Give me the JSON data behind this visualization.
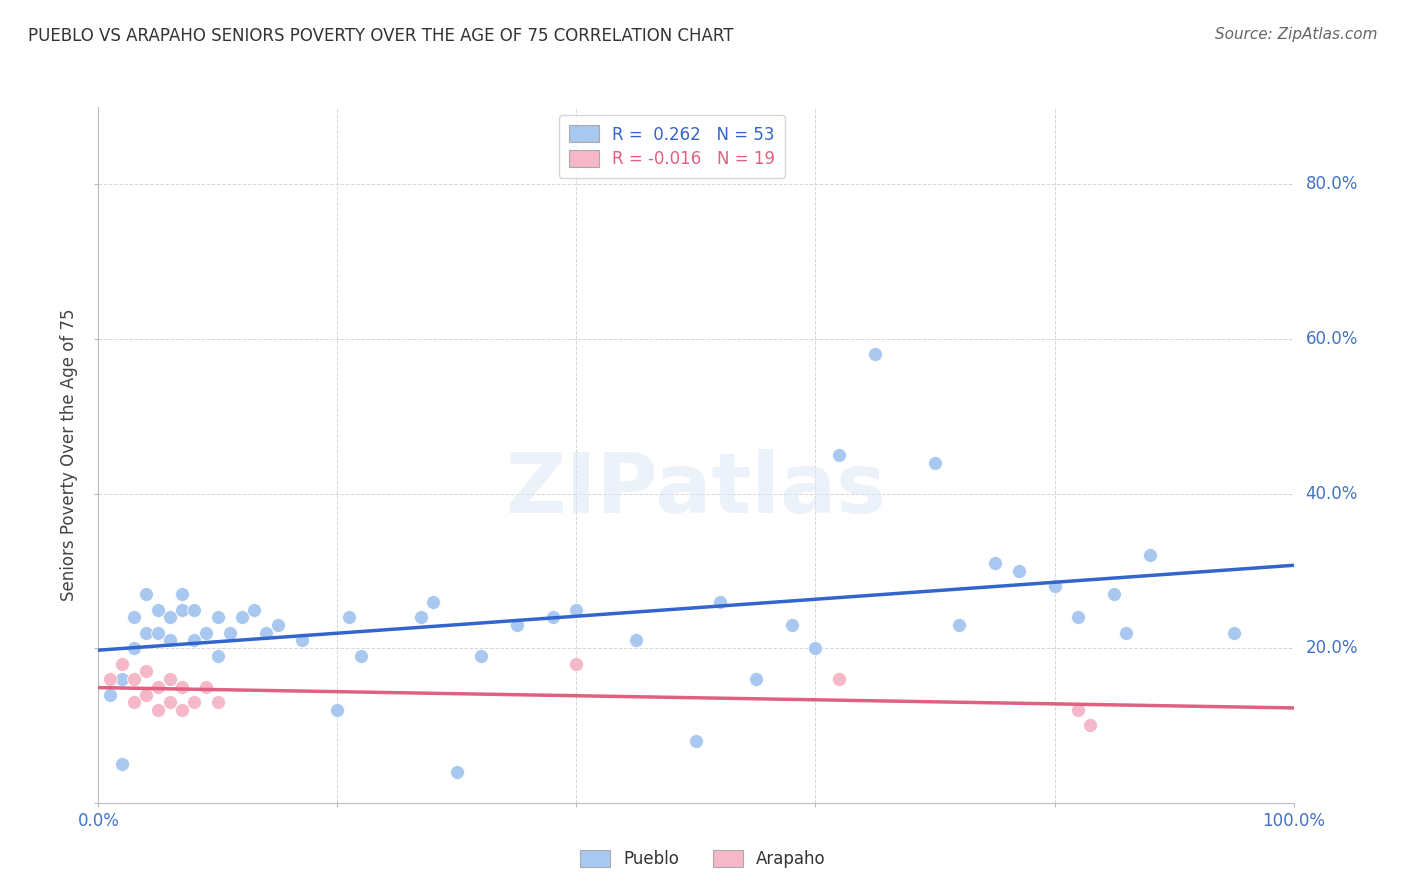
{
  "title": "PUEBLO VS ARAPAHO SENIORS POVERTY OVER THE AGE OF 75 CORRELATION CHART",
  "source": "Source: ZipAtlas.com",
  "ylabel": "Seniors Poverty Over the Age of 75",
  "xlim": [
    0.0,
    1.0
  ],
  "ylim": [
    0.0,
    0.9
  ],
  "xticks": [
    0.0,
    0.2,
    0.4,
    0.6,
    0.8,
    1.0
  ],
  "xtick_labels": [
    "0.0%",
    "",
    "",
    "",
    "",
    "100.0%"
  ],
  "yticks": [
    0.0,
    0.2,
    0.4,
    0.6,
    0.8
  ],
  "ytick_labels": [
    "",
    "20.0%",
    "40.0%",
    "60.0%",
    "80.0%"
  ],
  "pueblo_color": "#A8C8F0",
  "arapaho_color": "#F5B8C8",
  "pueblo_line_color": "#3366CC",
  "arapaho_line_color": "#E06080",
  "pueblo_R": 0.262,
  "arapaho_R": -0.016,
  "pueblo_N": 53,
  "arapaho_N": 19,
  "pueblo_x": [
    0.01,
    0.02,
    0.02,
    0.03,
    0.03,
    0.04,
    0.04,
    0.04,
    0.05,
    0.05,
    0.06,
    0.06,
    0.07,
    0.07,
    0.08,
    0.08,
    0.09,
    0.1,
    0.1,
    0.11,
    0.12,
    0.13,
    0.14,
    0.15,
    0.17,
    0.2,
    0.21,
    0.22,
    0.27,
    0.28,
    0.3,
    0.32,
    0.35,
    0.38,
    0.4,
    0.45,
    0.5,
    0.52,
    0.55,
    0.58,
    0.6,
    0.62,
    0.65,
    0.7,
    0.72,
    0.75,
    0.77,
    0.8,
    0.82,
    0.85,
    0.86,
    0.88,
    0.95
  ],
  "pueblo_y": [
    0.14,
    0.05,
    0.16,
    0.2,
    0.24,
    0.17,
    0.22,
    0.27,
    0.22,
    0.25,
    0.21,
    0.24,
    0.25,
    0.27,
    0.21,
    0.25,
    0.22,
    0.19,
    0.24,
    0.22,
    0.24,
    0.25,
    0.22,
    0.23,
    0.21,
    0.12,
    0.24,
    0.19,
    0.24,
    0.26,
    0.04,
    0.19,
    0.23,
    0.24,
    0.25,
    0.21,
    0.08,
    0.26,
    0.16,
    0.23,
    0.2,
    0.45,
    0.58,
    0.44,
    0.23,
    0.31,
    0.3,
    0.28,
    0.24,
    0.27,
    0.22,
    0.32,
    0.22
  ],
  "arapaho_x": [
    0.01,
    0.02,
    0.03,
    0.03,
    0.04,
    0.04,
    0.05,
    0.05,
    0.06,
    0.06,
    0.07,
    0.07,
    0.08,
    0.09,
    0.1,
    0.4,
    0.62,
    0.82,
    0.83
  ],
  "arapaho_y": [
    0.16,
    0.18,
    0.13,
    0.16,
    0.14,
    0.17,
    0.12,
    0.15,
    0.13,
    0.16,
    0.12,
    0.15,
    0.13,
    0.15,
    0.13,
    0.18,
    0.16,
    0.12,
    0.1
  ],
  "watermark_text": "ZIPatlas",
  "background_color": "#FFFFFF",
  "grid_color": "#CCCCCC",
  "tick_color": "#4472C4",
  "title_color": "#333333",
  "source_color": "#666666"
}
